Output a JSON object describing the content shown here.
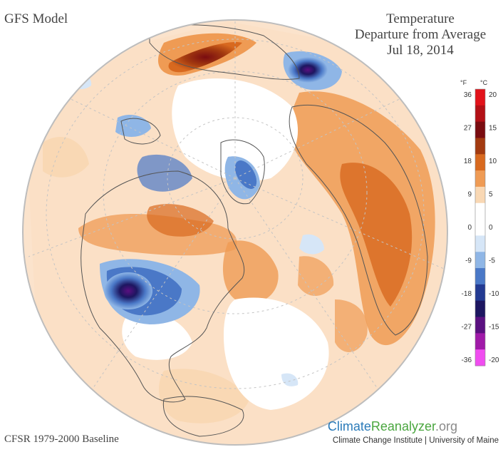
{
  "header": {
    "model": "GFS Model",
    "title_line1": "Temperature",
    "title_line2": "Departure from Average",
    "date": "Jul 18, 2014"
  },
  "footer": {
    "baseline": "CFSR 1979-2000 Baseline",
    "brand_part1": "Climate",
    "brand_part2": "Reanalyzer",
    "brand_part3": ".org",
    "credit": "Climate Change Institute | University of Maine"
  },
  "legend": {
    "unit_f": "°F",
    "unit_c": "°C",
    "ticks_f": [
      "36",
      "27",
      "18",
      "9",
      "0",
      "-9",
      "-18",
      "-27",
      "-36"
    ],
    "ticks_c": [
      "20",
      "15",
      "10",
      "5",
      "0",
      "-5",
      "-10",
      "-15",
      "-20"
    ],
    "colors": {
      "plus20": "#e2121a",
      "plus15": "#b31016",
      "plus10": "#7a0c10",
      "plus7": "#a33a10",
      "plus5": "#d8691f",
      "plus3": "#ef9b54",
      "plus1": "#f9d8b4",
      "zero": "#ffffff",
      "minus1": "#d6e6f7",
      "minus3": "#8fb6e6",
      "minus5": "#4a78c7",
      "minus8": "#233a92",
      "minus10": "#1d1660",
      "minus13": "#5a1080",
      "minus16": "#a01aa8",
      "minus20": "#f04df0"
    }
  },
  "map": {
    "land_outline": "#555555",
    "globe_border": "#bdbdbd"
  }
}
